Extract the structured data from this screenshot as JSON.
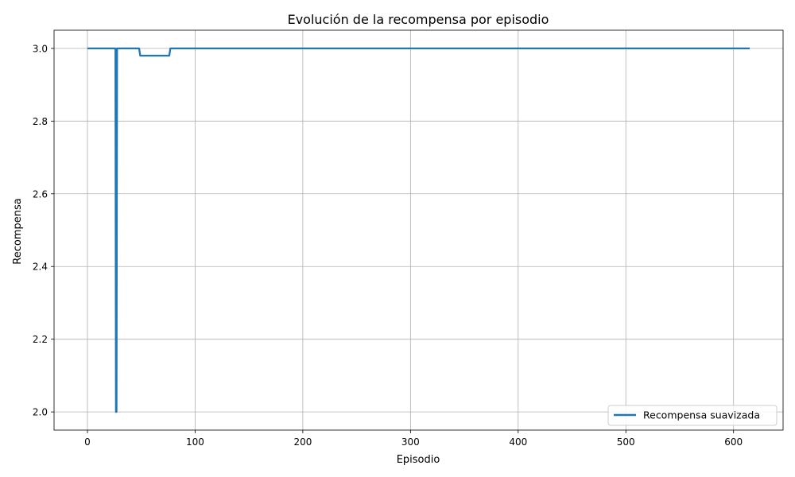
{
  "chart_data": {
    "type": "line",
    "title": "Evolución de la recompensa por episodio",
    "xlabel": "Episodio",
    "ylabel": "Recompensa",
    "xlim": [
      -31,
      646
    ],
    "ylim": [
      1.95,
      3.05
    ],
    "xticks": [
      0,
      100,
      200,
      300,
      400,
      500,
      600
    ],
    "yticks": [
      2.0,
      2.2,
      2.4,
      2.6,
      2.8,
      3.0
    ],
    "grid": true,
    "legend_position": "bottom-right",
    "colors": {
      "series": "#1f77b4",
      "grid": "#b0b0b0",
      "axes": "#000000"
    },
    "series": [
      {
        "name": "Recompensa suavizada",
        "x": [
          0,
          26,
          26.5,
          27,
          27.5,
          28,
          48,
          49,
          76,
          77,
          615
        ],
        "y": [
          3.0,
          3.0,
          2.0,
          2.0,
          3.0,
          3.0,
          3.0,
          2.98,
          2.98,
          3.0,
          3.0
        ]
      }
    ]
  }
}
